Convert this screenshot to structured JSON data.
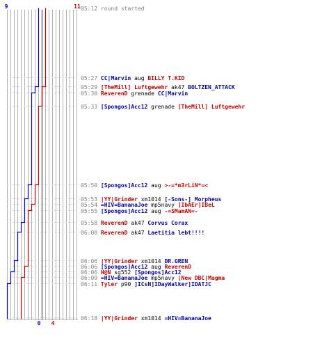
{
  "timeline": {
    "blue_start": 9,
    "red_start": 11,
    "blue_end": 0,
    "red_end": 4,
    "colors": {
      "blue": "#0000cc",
      "red": "#cc0000",
      "grid": "#b0b0b0",
      "mid": "#707070"
    }
  },
  "events": [
    {
      "time": "05:12",
      "parts": [
        {
          "text": "round started",
          "c": "gray"
        }
      ]
    },
    {
      "time": "05:27",
      "parts": [
        {
          "text": "CC|Marvin",
          "c": "blue"
        },
        {
          "text": " aug ",
          "c": "black"
        },
        {
          "text": "BILLY T.KID",
          "c": "red"
        }
      ]
    },
    {
      "time": "05:29",
      "parts": [
        {
          "text": "[TheMill] Luftgewehr",
          "c": "red"
        },
        {
          "text": " ak47 ",
          "c": "black"
        },
        {
          "text": "BOLTZEN_ATTACK",
          "c": "blue"
        }
      ]
    },
    {
      "time": "05:30",
      "parts": [
        {
          "text": "ReverenD",
          "c": "red"
        },
        {
          "text": " grenade ",
          "c": "black"
        },
        {
          "text": "CC|Marvin",
          "c": "blue"
        }
      ]
    },
    {
      "time": "05:33",
      "parts": [
        {
          "text": "[Spongos]Acc12",
          "c": "blue"
        },
        {
          "text": " grenade ",
          "c": "black"
        },
        {
          "text": "[TheMill] Luftgewehr",
          "c": "red"
        }
      ]
    },
    {
      "time": "05:50",
      "parts": [
        {
          "text": "[Spongos]Acc12",
          "c": "blue"
        },
        {
          "text": " aug ",
          "c": "black"
        },
        {
          "text": ">-=*m3rLiN*=<",
          "c": "red"
        }
      ]
    },
    {
      "time": "05:53",
      "parts": [
        {
          "text": "|YY|Grinder",
          "c": "red"
        },
        {
          "text": " xm1014 ",
          "c": "black"
        },
        {
          "text": "[-Sons-] Morpheus",
          "c": "blue"
        }
      ]
    },
    {
      "time": "05:54",
      "parts": [
        {
          "text": "=HIV=BananaJoe",
          "c": "blue"
        },
        {
          "text": " mp5navy ",
          "c": "black"
        },
        {
          "text": "]IbAEr]IBeL",
          "c": "red"
        }
      ]
    },
    {
      "time": "05:55",
      "parts": [
        {
          "text": "[Spongos]Acc12",
          "c": "blue"
        },
        {
          "text": " aug ",
          "c": "black"
        },
        {
          "text": "-=SMamAN=-",
          "c": "red"
        }
      ]
    },
    {
      "time": "05:58",
      "parts": [
        {
          "text": "ReverenD",
          "c": "red"
        },
        {
          "text": " ak47 ",
          "c": "black"
        },
        {
          "text": "Corvus Corax",
          "c": "blue"
        }
      ]
    },
    {
      "time": "06:00",
      "parts": [
        {
          "text": "ReverenD",
          "c": "red"
        },
        {
          "text": " ak47 ",
          "c": "black"
        },
        {
          "text": "Laetitia lebt!!!!",
          "c": "blue"
        }
      ]
    },
    {
      "time": "06:06",
      "parts": [
        {
          "text": "|YY|Grinder",
          "c": "red"
        },
        {
          "text": " xm1014 ",
          "c": "black"
        },
        {
          "text": "DR.GREN",
          "c": "blue"
        }
      ]
    },
    {
      "time": "06:06",
      "parts": [
        {
          "text": "[Spongos]Acc12",
          "c": "blue"
        },
        {
          "text": " aug ",
          "c": "black"
        },
        {
          "text": "ReverenD",
          "c": "red"
        }
      ]
    },
    {
      "time": "06:06",
      "parts": [
        {
          "text": "H@N",
          "c": "red"
        },
        {
          "text": " sg552 ",
          "c": "black"
        },
        {
          "text": "[Spongos]Acc12",
          "c": "blue"
        }
      ]
    },
    {
      "time": "06:09",
      "parts": [
        {
          "text": "=HIV=BananaJoe",
          "c": "blue"
        },
        {
          "text": " mp5navy ",
          "c": "black"
        },
        {
          "text": "|New DBC|Magma",
          "c": "red"
        }
      ]
    },
    {
      "time": "06:11",
      "parts": [
        {
          "text": "Tyler",
          "c": "red"
        },
        {
          "text": " p90 ",
          "c": "black"
        },
        {
          "text": "]ICsN]IDayWalker]IDATJC",
          "c": "blue"
        }
      ]
    },
    {
      "time": "06:18",
      "parts": [
        {
          "text": "|YY|Grinder",
          "c": "red"
        },
        {
          "text": " xm1014 ",
          "c": "black"
        },
        {
          "text": "=HIV=BananaJoe",
          "c": "blue"
        }
      ]
    }
  ]
}
